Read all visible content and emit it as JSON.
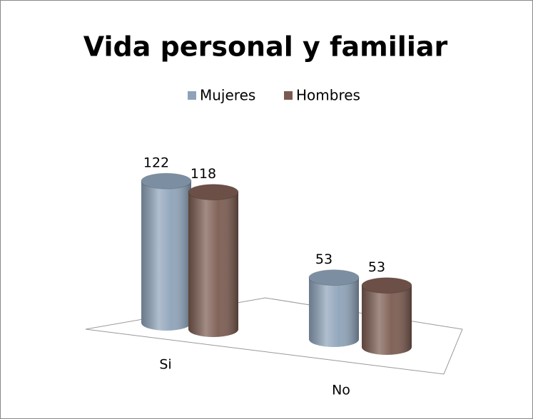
{
  "chart_data": {
    "type": "bar3d",
    "title": "Vida personal y familiar",
    "categories": [
      "Si",
      "No"
    ],
    "series": [
      {
        "name": "Mujeres",
        "color": "#8ea3b9",
        "values": [
          122,
          53
        ]
      },
      {
        "name": "Hombres",
        "color": "#7b5b50",
        "values": [
          118,
          53
        ]
      }
    ],
    "legend": "top"
  }
}
